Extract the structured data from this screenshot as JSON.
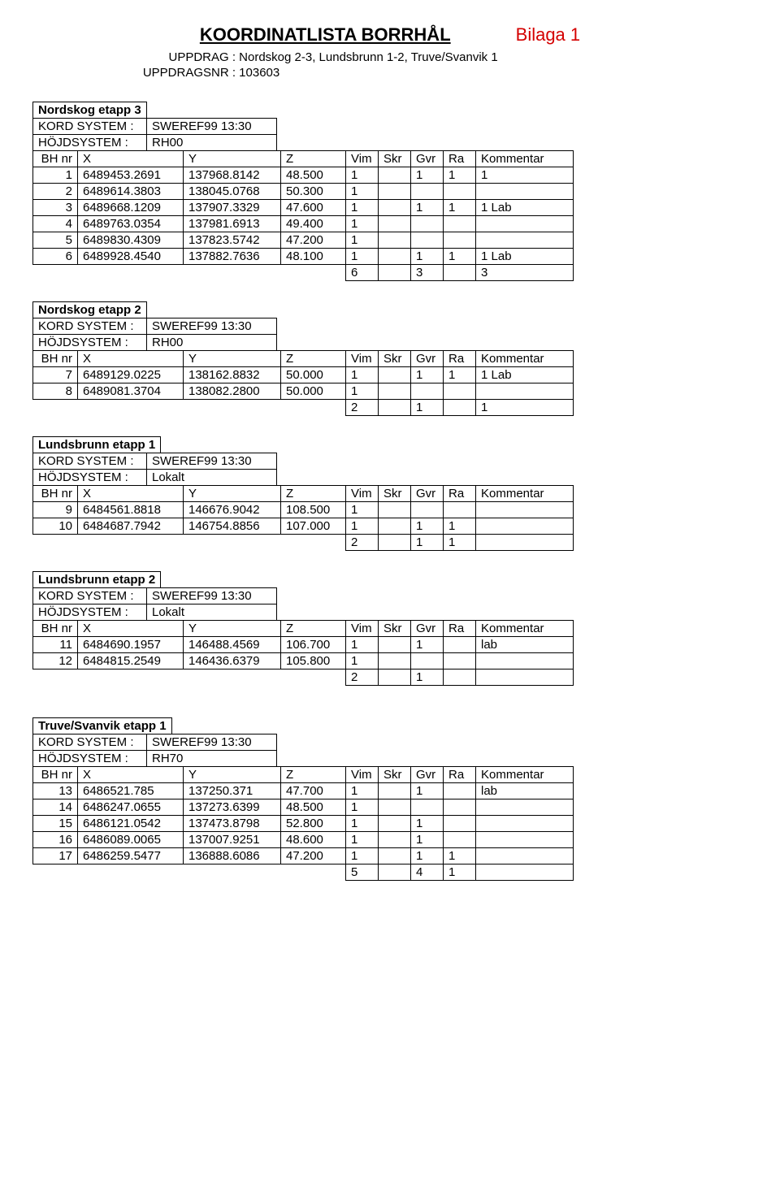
{
  "title": "KOORDINATLISTA BORRHÅL",
  "bilaga": "Bilaga 1",
  "uppdrag_label": "UPPDRAG :",
  "uppdrag": "Nordskog 2-3, Lundsbrunn 1-2, Truve/Svanvik 1",
  "uppdragsnr_label": "UPPDRAGSNR :",
  "uppdragsnr": "103603",
  "labels": {
    "kord": "KORD SYSTEM :",
    "hojd": "HÖJDSYSTEM :",
    "bh": "BH nr",
    "x": "X",
    "y": "Y",
    "z": "Z",
    "vim": "Vim",
    "skr": "Skr",
    "gvr": "Gvr",
    "ra": "Ra",
    "kom": "Kommentar"
  },
  "sections": [
    {
      "name": "Nordskog etapp 3",
      "kord": "SWEREF99 13:30",
      "hojd": "RH00",
      "rows": [
        {
          "bh": "1",
          "x": "6489453.2691",
          "y": "137968.8142",
          "z": "48.500",
          "vim": "1",
          "skr": "",
          "gvr": "1",
          "ra": "1",
          "kom": "1"
        },
        {
          "bh": "2",
          "x": "6489614.3803",
          "y": "138045.0768",
          "z": "50.300",
          "vim": "1",
          "skr": "",
          "gvr": "",
          "ra": "",
          "kom": ""
        },
        {
          "bh": "3",
          "x": "6489668.1209",
          "y": "137907.3329",
          "z": "47.600",
          "vim": "1",
          "skr": "",
          "gvr": "1",
          "ra": "1",
          "kom": "1 Lab"
        },
        {
          "bh": "4",
          "x": "6489763.0354",
          "y": "137981.6913",
          "z": "49.400",
          "vim": "1",
          "skr": "",
          "gvr": "",
          "ra": "",
          "kom": ""
        },
        {
          "bh": "5",
          "x": "6489830.4309",
          "y": "137823.5742",
          "z": "47.200",
          "vim": "1",
          "skr": "",
          "gvr": "",
          "ra": "",
          "kom": ""
        },
        {
          "bh": "6",
          "x": "6489928.4540",
          "y": "137882.7636",
          "z": "48.100",
          "vim": "1",
          "skr": "",
          "gvr": "1",
          "ra": "1",
          "kom": "1 Lab"
        }
      ],
      "summary": {
        "vim": "6",
        "skr": "",
        "gvr": "3",
        "ra": "",
        "kom": "3"
      }
    },
    {
      "name": "Nordskog etapp 2",
      "kord": "SWEREF99 13:30",
      "hojd": "RH00",
      "rows": [
        {
          "bh": "7",
          "x": "6489129.0225",
          "y": "138162.8832",
          "z": "50.000",
          "vim": "1",
          "skr": "",
          "gvr": "1",
          "ra": "1",
          "kom": "1 Lab"
        },
        {
          "bh": "8",
          "x": "6489081.3704",
          "y": "138082.2800",
          "z": "50.000",
          "vim": "1",
          "skr": "",
          "gvr": "",
          "ra": "",
          "kom": ""
        }
      ],
      "summary": {
        "vim": "2",
        "skr": "",
        "gvr": "1",
        "ra": "",
        "kom": "1"
      }
    },
    {
      "name": "Lundsbrunn etapp 1",
      "kord": "SWEREF99 13:30",
      "hojd": "Lokalt",
      "rows": [
        {
          "bh": "9",
          "x": "6484561.8818",
          "y": "146676.9042",
          "z": "108.500",
          "vim": "1",
          "skr": "",
          "gvr": "",
          "ra": "",
          "kom": ""
        },
        {
          "bh": "10",
          "x": "6484687.7942",
          "y": "146754.8856",
          "z": "107.000",
          "vim": "1",
          "skr": "",
          "gvr": "1",
          "ra": "1",
          "kom": ""
        }
      ],
      "summary": {
        "vim": "2",
        "skr": "",
        "gvr": "1",
        "ra": "1",
        "kom": ""
      }
    },
    {
      "name": "Lundsbrunn etapp 2",
      "kord": "SWEREF99 13:30",
      "hojd": "Lokalt",
      "rows": [
        {
          "bh": "11",
          "x": "6484690.1957",
          "y": "146488.4569",
          "z": "106.700",
          "vim": "1",
          "skr": "",
          "gvr": "1",
          "ra": "",
          "kom": "lab"
        },
        {
          "bh": "12",
          "x": "6484815.2549",
          "y": "146436.6379",
          "z": "105.800",
          "vim": "1",
          "skr": "",
          "gvr": "",
          "ra": "",
          "kom": ""
        }
      ],
      "summary": {
        "vim": "2",
        "skr": "",
        "gvr": "1",
        "ra": "",
        "kom": ""
      }
    },
    {
      "name": "Truve/Svanvik etapp 1",
      "kord": "SWEREF99 13:30",
      "hojd": "RH70",
      "rows": [
        {
          "bh": "13",
          "x": "6486521.785",
          "y": "137250.371",
          "z": "47.700",
          "vim": "1",
          "skr": "",
          "gvr": "1",
          "ra": "",
          "kom": "lab"
        },
        {
          "bh": "14",
          "x": "6486247.0655",
          "y": "137273.6399",
          "z": "48.500",
          "vim": "1",
          "skr": "",
          "gvr": "",
          "ra": "",
          "kom": ""
        },
        {
          "bh": "15",
          "x": "6486121.0542",
          "y": "137473.8798",
          "z": "52.800",
          "vim": "1",
          "skr": "",
          "gvr": "1",
          "ra": "",
          "kom": ""
        },
        {
          "bh": "16",
          "x": "6486089.0065",
          "y": "137007.9251",
          "z": "48.600",
          "vim": "1",
          "skr": "",
          "gvr": "1",
          "ra": "",
          "kom": ""
        },
        {
          "bh": "17",
          "x": "6486259.5477",
          "y": "136888.6086",
          "z": "47.200",
          "vim": "1",
          "skr": "",
          "gvr": "1",
          "ra": "1",
          "kom": ""
        }
      ],
      "summary": {
        "vim": "5",
        "skr": "",
        "gvr": "4",
        "ra": "1",
        "kom": ""
      }
    }
  ]
}
